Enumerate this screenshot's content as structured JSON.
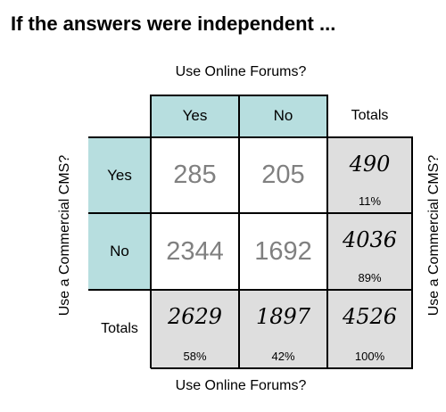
{
  "title": "If the answers were independent ...",
  "axis": {
    "top": "Use Online Forums?",
    "bottom": "Use Online Forums?",
    "left": "Use a Commercial CMS?",
    "right": "Use a Commercial CMS?"
  },
  "columns": {
    "yes": "Yes",
    "no": "No",
    "totals": "Totals"
  },
  "rows": {
    "yes": "Yes",
    "no": "No",
    "totals": "Totals"
  },
  "cells": {
    "yes_yes": "285",
    "yes_no": "205",
    "no_yes": "2344",
    "no_no": "1692"
  },
  "row_totals": {
    "yes": {
      "value": "490",
      "pct": "11%"
    },
    "no": {
      "value": "4036",
      "pct": "89%"
    }
  },
  "col_totals": {
    "yes": {
      "value": "2629",
      "pct": "58%"
    },
    "no": {
      "value": "1897",
      "pct": "42%"
    },
    "grand": {
      "value": "4526",
      "pct": "100%"
    }
  },
  "colors": {
    "header": "#b7dedf",
    "totals_bg": "#dedede",
    "value_text": "#808080"
  }
}
